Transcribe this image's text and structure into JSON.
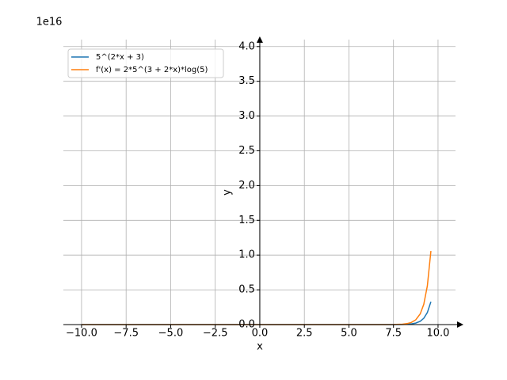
{
  "chart_data": {
    "type": "line",
    "offset_label": "1e16",
    "xlabel": "x",
    "ylabel": "y",
    "x": [
      -10,
      -5,
      0,
      5,
      7,
      7.5,
      8,
      8.25,
      8.5,
      8.75,
      9,
      9.2,
      9.4,
      9.6
    ],
    "series": [
      {
        "name": "5^(2*x + 3)",
        "color": "#1f77b4",
        "values": [
          0,
          0,
          0,
          0,
          7.63e-05,
          0.00038,
          0.00191,
          0.00427,
          0.00954,
          0.0213,
          0.0477,
          0.0908,
          0.1728,
          0.329
        ]
      },
      {
        "name": "f'(x) = 2*5^(3 + 2*x)*log(5)",
        "color": "#ff7f0e",
        "values": [
          0,
          0,
          0,
          0,
          0.000246,
          0.00122,
          0.00615,
          0.01375,
          0.0307,
          0.0686,
          0.1536,
          0.292,
          0.556,
          1.059
        ]
      }
    ],
    "xlim": [
      -11.02,
      10.98
    ],
    "ylim": [
      0,
      4.1
    ],
    "xticks": [
      {
        "value": -10,
        "label": "−10.0"
      },
      {
        "value": -7.5,
        "label": "−7.5"
      },
      {
        "value": -5,
        "label": "−5.0"
      },
      {
        "value": -2.5,
        "label": "−2.5"
      },
      {
        "value": 0,
        "label": "0.0"
      },
      2.5,
      {
        "value": 5,
        "label": "5.0"
      },
      7.5,
      {
        "value": 10,
        "label": "10.0"
      }
    ],
    "yticks": [
      {
        "value": 0,
        "label": "0.0"
      },
      0.5,
      {
        "value": 1,
        "label": "1.0"
      },
      1.5,
      {
        "value": 2,
        "label": "2.0"
      },
      2.5,
      {
        "value": 3,
        "label": "3.0"
      },
      3.5,
      {
        "value": 4,
        "label": "4.0"
      }
    ],
    "grid": true,
    "legend": "upper left"
  }
}
